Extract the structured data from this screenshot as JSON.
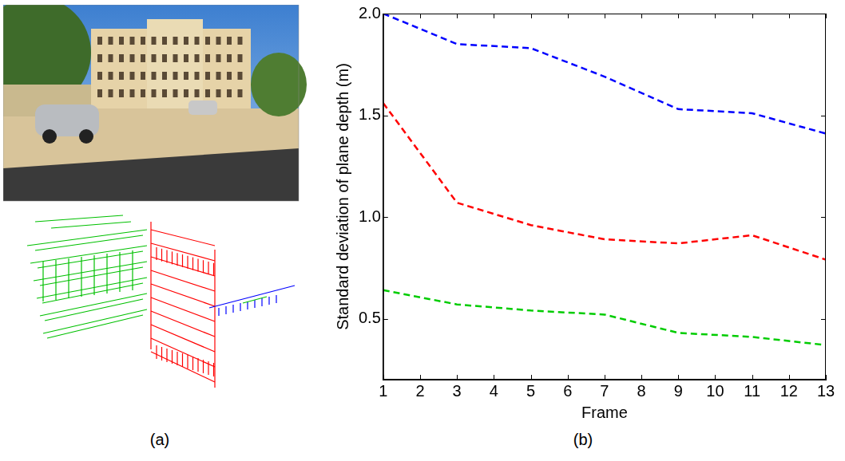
{
  "image_panel": {
    "caption": "(a)"
  },
  "chart_data": {
    "type": "line",
    "caption": "(b)",
    "x_label": "Frame",
    "y_label": "Standard deviation of plane depth (m)",
    "x": [
      1,
      3,
      5,
      7,
      9,
      11,
      13
    ],
    "series": [
      {
        "color": "#0000ff",
        "values": [
          2.0,
          1.85,
          1.83,
          1.69,
          1.53,
          1.51,
          1.41
        ]
      },
      {
        "color": "#ff0000",
        "values": [
          1.56,
          1.07,
          0.96,
          0.89,
          0.87,
          0.91,
          0.79
        ]
      },
      {
        "color": "#00cc00",
        "values": [
          0.64,
          0.57,
          0.54,
          0.52,
          0.43,
          0.41,
          0.37
        ]
      }
    ],
    "xlim": [
      1,
      13
    ],
    "xticks": [
      1,
      2,
      3,
      4,
      5,
      6,
      7,
      8,
      9,
      10,
      11,
      12,
      13
    ],
    "ylim": [
      0.2,
      2
    ],
    "yticks": [
      0.5,
      {
        "value": 1,
        "label": "1.0"
      },
      1.5,
      {
        "value": 2,
        "label": "2.0"
      }
    ],
    "grid": false,
    "line_style": "dashed"
  }
}
